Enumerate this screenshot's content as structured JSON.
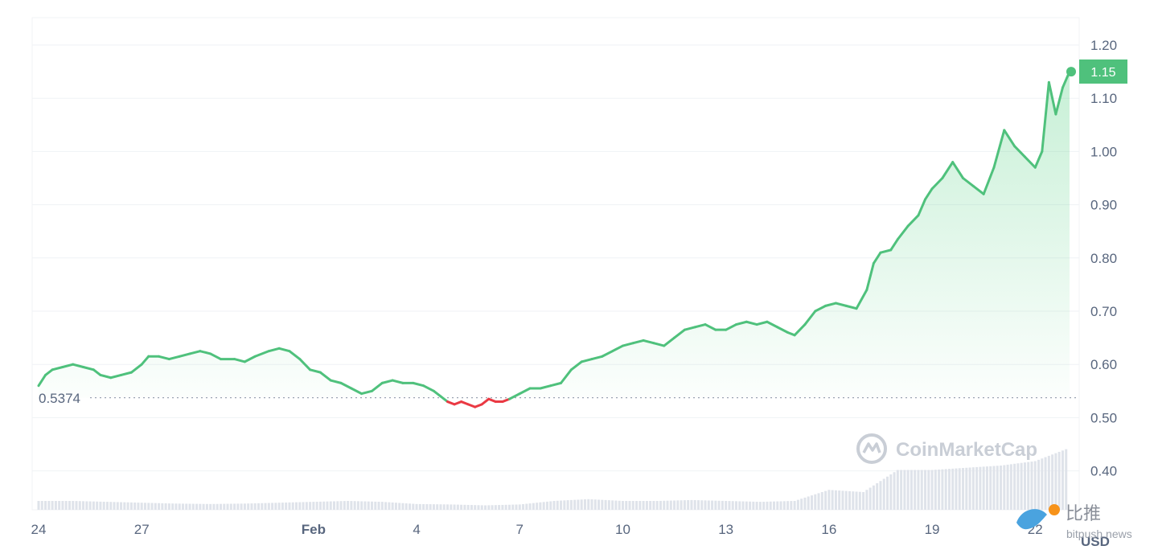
{
  "chart_data": {
    "type": "line",
    "x_tick_labels": [
      "24",
      "27",
      "Feb",
      "4",
      "7",
      "10",
      "13",
      "16",
      "19",
      "22"
    ],
    "y_tick_labels": [
      "1.20",
      "1.10",
      "1.00",
      "0.90",
      "0.80",
      "0.70",
      "0.60",
      "0.50",
      "0.40"
    ],
    "ylim": [
      0.35,
      1.22
    ],
    "y_unit": "USD",
    "reference_value": 0.5374,
    "reference_label": "0.5374",
    "last_value": 1.15,
    "last_value_label": "1.15",
    "grid": true,
    "colors": {
      "up": "#16c784",
      "down": "#ea3943",
      "line": "#4fc17c",
      "area": "#5fd38a",
      "volume": "#dfe3ea",
      "grid": "#eff2f5"
    },
    "series": [
      {
        "values": [
          [
            24.0,
            0.56
          ],
          [
            24.2,
            0.58
          ],
          [
            24.4,
            0.59
          ],
          [
            24.7,
            0.595
          ],
          [
            25.0,
            0.6
          ],
          [
            25.3,
            0.595
          ],
          [
            25.6,
            0.59
          ],
          [
            25.8,
            0.58
          ],
          [
            26.1,
            0.575
          ],
          [
            26.4,
            0.58
          ],
          [
            26.7,
            0.585
          ],
          [
            27.0,
            0.6
          ],
          [
            27.2,
            0.615
          ],
          [
            27.5,
            0.615
          ],
          [
            27.8,
            0.61
          ],
          [
            28.1,
            0.615
          ],
          [
            28.4,
            0.62
          ],
          [
            28.7,
            0.625
          ],
          [
            29.0,
            0.62
          ],
          [
            29.3,
            0.61
          ],
          [
            29.7,
            0.61
          ],
          [
            30.0,
            0.605
          ],
          [
            30.3,
            0.615
          ],
          [
            30.7,
            0.625
          ],
          [
            31.0,
            0.63
          ],
          [
            31.3,
            0.625
          ],
          [
            31.6,
            0.61
          ],
          [
            31.9,
            0.59
          ],
          [
            32.2,
            0.585
          ],
          [
            32.5,
            0.57
          ],
          [
            32.8,
            0.565
          ],
          [
            33.1,
            0.555
          ],
          [
            33.4,
            0.545
          ],
          [
            33.7,
            0.55
          ],
          [
            34.0,
            0.565
          ],
          [
            34.3,
            0.57
          ],
          [
            34.6,
            0.565
          ],
          [
            34.9,
            0.565
          ],
          [
            35.2,
            0.56
          ],
          [
            35.5,
            0.55
          ],
          [
            35.7,
            0.54
          ],
          [
            35.9,
            0.53
          ],
          [
            36.1,
            0.525
          ],
          [
            36.3,
            0.53
          ],
          [
            36.5,
            0.525
          ],
          [
            36.7,
            0.52
          ],
          [
            36.9,
            0.525
          ],
          [
            37.1,
            0.535
          ],
          [
            37.3,
            0.53
          ],
          [
            37.5,
            0.53
          ],
          [
            37.7,
            0.535
          ],
          [
            38.0,
            0.545
          ],
          [
            38.3,
            0.555
          ],
          [
            38.6,
            0.555
          ],
          [
            38.9,
            0.56
          ],
          [
            39.2,
            0.565
          ],
          [
            39.5,
            0.59
          ],
          [
            39.8,
            0.605
          ],
          [
            40.1,
            0.61
          ],
          [
            40.4,
            0.615
          ],
          [
            40.7,
            0.625
          ],
          [
            41.0,
            0.635
          ],
          [
            41.3,
            0.64
          ],
          [
            41.6,
            0.645
          ],
          [
            41.9,
            0.64
          ],
          [
            42.2,
            0.635
          ],
          [
            42.5,
            0.65
          ],
          [
            42.8,
            0.665
          ],
          [
            43.1,
            0.67
          ],
          [
            43.4,
            0.675
          ],
          [
            43.7,
            0.665
          ],
          [
            44.0,
            0.665
          ],
          [
            44.3,
            0.675
          ],
          [
            44.6,
            0.68
          ],
          [
            44.9,
            0.675
          ],
          [
            45.2,
            0.68
          ],
          [
            45.5,
            0.67
          ],
          [
            45.8,
            0.66
          ],
          [
            46.0,
            0.655
          ],
          [
            46.3,
            0.675
          ],
          [
            46.6,
            0.7
          ],
          [
            46.9,
            0.71
          ],
          [
            47.2,
            0.715
          ],
          [
            47.5,
            0.71
          ],
          [
            47.8,
            0.705
          ],
          [
            48.1,
            0.74
          ],
          [
            48.3,
            0.79
          ],
          [
            48.5,
            0.81
          ],
          [
            48.8,
            0.815
          ],
          [
            49.0,
            0.835
          ],
          [
            49.3,
            0.86
          ],
          [
            49.6,
            0.88
          ],
          [
            49.8,
            0.91
          ],
          [
            50.0,
            0.93
          ],
          [
            50.3,
            0.95
          ],
          [
            50.6,
            0.98
          ],
          [
            50.9,
            0.95
          ],
          [
            51.2,
            0.935
          ],
          [
            51.5,
            0.92
          ],
          [
            51.8,
            0.97
          ],
          [
            52.1,
            1.04
          ],
          [
            52.4,
            1.01
          ],
          [
            52.7,
            0.99
          ],
          [
            53.0,
            0.97
          ],
          [
            53.2,
            1.0
          ],
          [
            53.4,
            1.13
          ],
          [
            53.6,
            1.07
          ],
          [
            53.8,
            1.12
          ],
          [
            54.0,
            1.15
          ]
        ]
      }
    ],
    "volume": [
      [
        24.0,
        0.02
      ],
      [
        25.0,
        0.02
      ],
      [
        26.0,
        0.018
      ],
      [
        27.0,
        0.016
      ],
      [
        28.0,
        0.014
      ],
      [
        29.0,
        0.013
      ],
      [
        30.0,
        0.014
      ],
      [
        31.0,
        0.016
      ],
      [
        32.0,
        0.018
      ],
      [
        33.0,
        0.02
      ],
      [
        34.0,
        0.018
      ],
      [
        35.0,
        0.013
      ],
      [
        36.0,
        0.012
      ],
      [
        37.0,
        0.01
      ],
      [
        38.0,
        0.012
      ],
      [
        39.0,
        0.02
      ],
      [
        40.0,
        0.024
      ],
      [
        41.0,
        0.02
      ],
      [
        42.0,
        0.02
      ],
      [
        43.0,
        0.022
      ],
      [
        44.0,
        0.02
      ],
      [
        45.0,
        0.018
      ],
      [
        46.0,
        0.02
      ],
      [
        47.0,
        0.045
      ],
      [
        48.0,
        0.04
      ],
      [
        49.0,
        0.09
      ],
      [
        50.0,
        0.09
      ],
      [
        51.0,
        0.095
      ],
      [
        52.0,
        0.1
      ],
      [
        53.0,
        0.11
      ],
      [
        54.0,
        0.14
      ]
    ]
  },
  "watermark": {
    "brand": "CoinMarketCap"
  },
  "badge": {
    "cn": "比推",
    "en": "bitpush news"
  }
}
